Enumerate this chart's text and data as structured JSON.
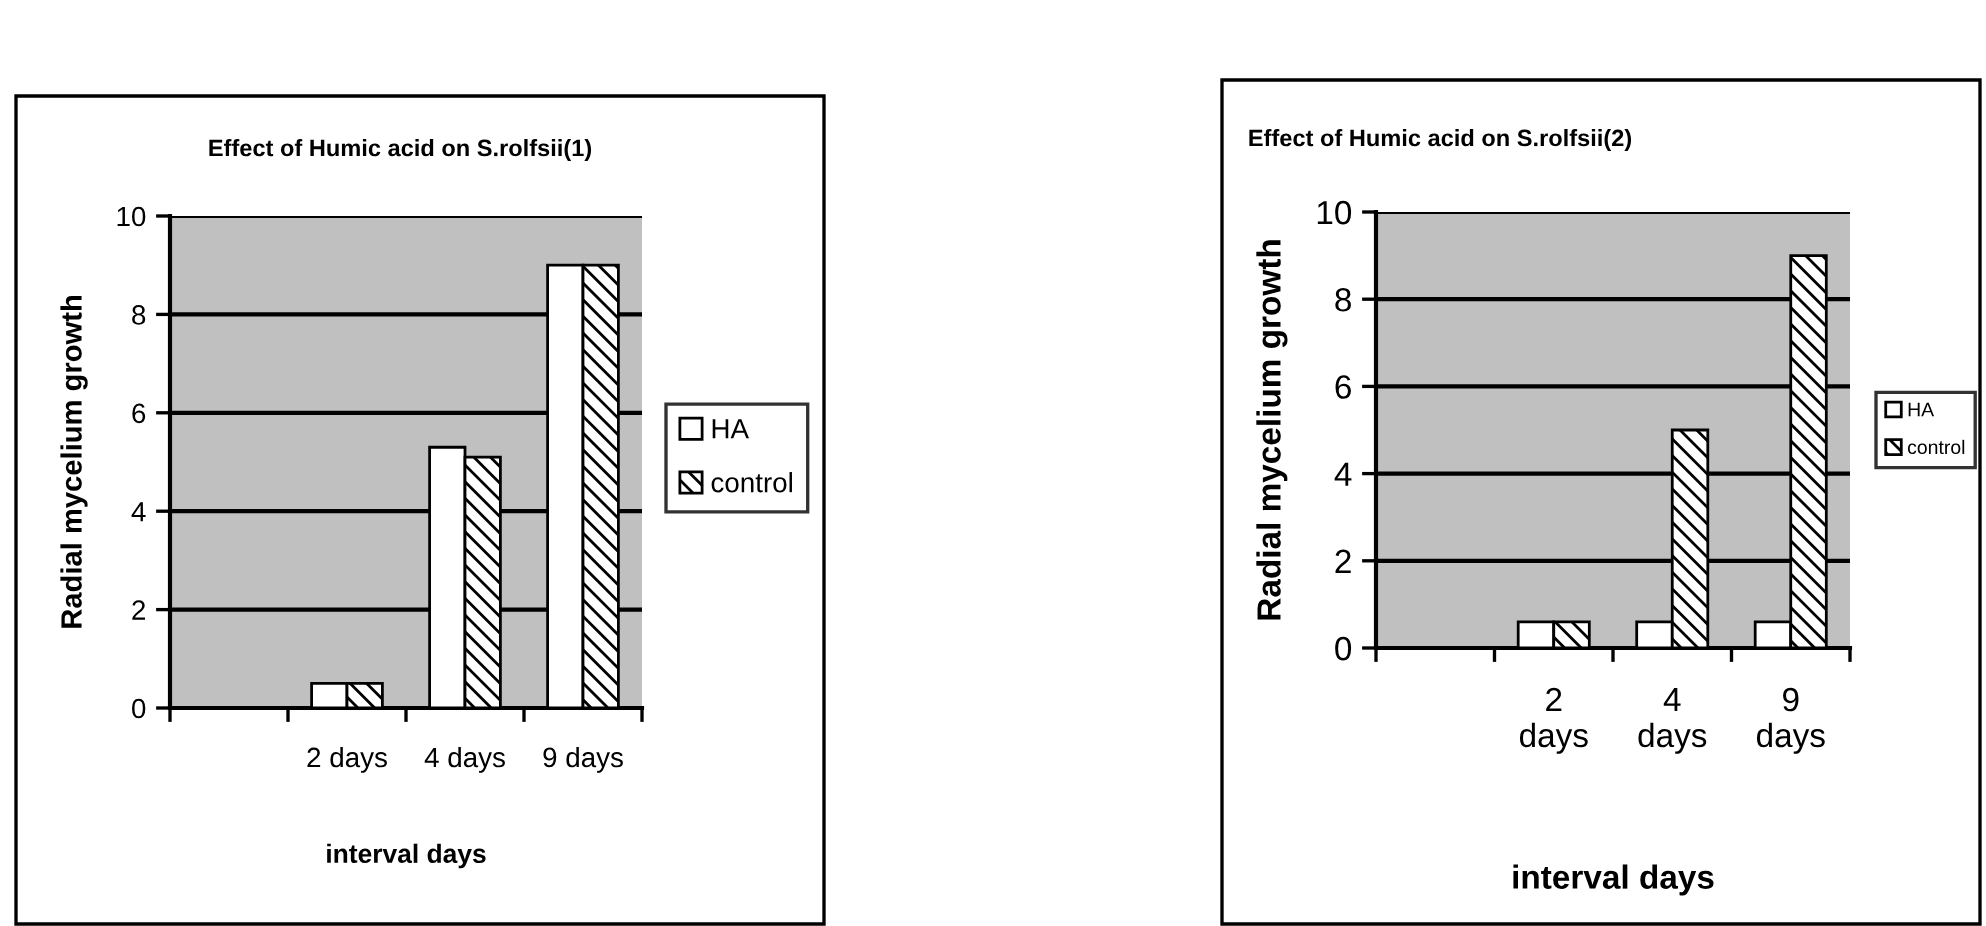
{
  "chart_data": [
    {
      "type": "bar",
      "title": "Effect of Humic acid on S.rolfsii(1)",
      "xlabel": "interval days",
      "ylabel": "Radial mycelium growth",
      "categories": [
        null,
        "2 days",
        "4 days",
        "9 days"
      ],
      "series": [
        {
          "name": "HA",
          "color": "#ffffff",
          "values": [
            null,
            0.5,
            5.3,
            9
          ]
        },
        {
          "name": "control",
          "color": "#000000",
          "values": [
            null,
            0.5,
            5.1,
            9
          ]
        }
      ],
      "ylim": [
        0,
        10
      ],
      "yticks": [
        0,
        2,
        4,
        6,
        8,
        10
      ],
      "grid": "y",
      "legend": "right"
    },
    {
      "type": "bar",
      "title": "Effect of Humic acid on S.rolfsii(2)",
      "xlabel": "interval days",
      "ylabel": "Radial mycelium growth",
      "categories": [
        null,
        "2\ndays",
        "4\ndays",
        "9\ndays"
      ],
      "series": [
        {
          "name": "HA",
          "color": "#ffffff",
          "values": [
            null,
            0.6,
            0.6,
            0.6
          ]
        },
        {
          "name": "control",
          "color": "#000000",
          "values": [
            null,
            0.6,
            5,
            9
          ]
        }
      ],
      "ylim": [
        0,
        10
      ],
      "yticks": [
        0,
        2,
        4,
        6,
        8,
        10
      ],
      "grid": "y",
      "legend": "right"
    }
  ]
}
